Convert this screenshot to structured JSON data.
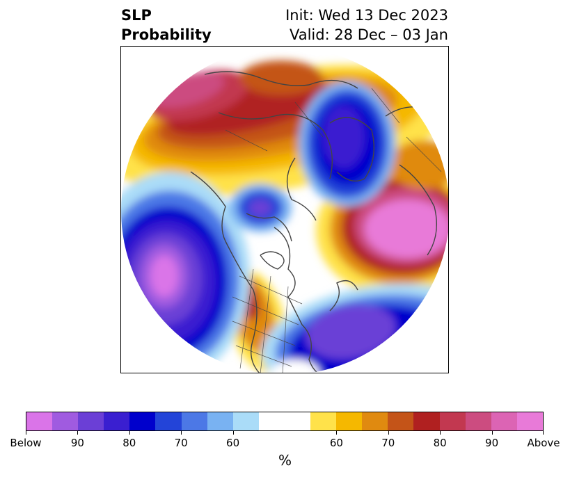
{
  "title": {
    "left_line1": "SLP",
    "left_line2": "Probability",
    "right_line1": "Init: Wed 13 Dec 2023",
    "right_line2": "Valid: 28 Dec – 03 Jan"
  },
  "colorbar": {
    "colors": [
      "#da74e8",
      "#a05be0",
      "#6b3fd6",
      "#3a1fd0",
      "#0000cc",
      "#2344d8",
      "#4c78e6",
      "#79b2f2",
      "#aadcf8",
      "#ffffff",
      "#ffffff",
      "#ffe24a",
      "#f5b800",
      "#e08a10",
      "#c45418",
      "#b02020",
      "#c23850",
      "#cc4c80",
      "#dc64b4",
      "#e87ad8"
    ],
    "tick_labels": [
      "Below",
      "90",
      "80",
      "70",
      "60",
      "60",
      "70",
      "80",
      "90",
      "Above"
    ],
    "units": "%"
  },
  "colors": {
    "below_strong": "#da74e8",
    "below_mid": "#0000cc",
    "neutral": "#ffffff",
    "above_mid": "#e08a10",
    "above_strong": "#e87ad8",
    "coastline": "#444444"
  }
}
